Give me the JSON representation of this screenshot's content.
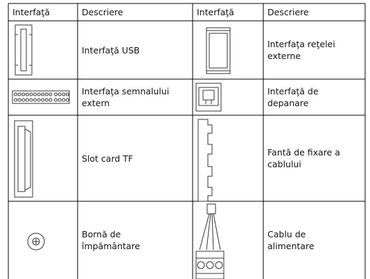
{
  "table": {
    "header": [
      "Interfaţă",
      "Descriere",
      "Interfaţă",
      "Descriere"
    ],
    "rows": [
      [
        "Interfaţă USB",
        "Interfaţa reţelei externe"
      ],
      [
        "Interfaţa semnalului extern",
        "Interfaţă de depanare"
      ],
      [
        "Slot card TF",
        "Fantă de fixare a cablului"
      ],
      [
        "Bornă de împământare",
        "Cablu de alimentare"
      ]
    ]
  }
}
